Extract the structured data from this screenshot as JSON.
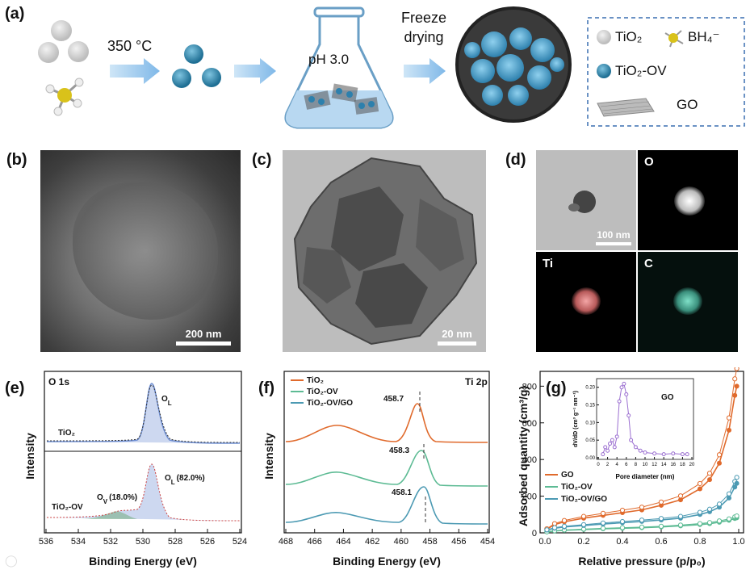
{
  "panels": {
    "a": "(a)",
    "b": "(b)",
    "c": "(c)",
    "d": "(d)",
    "e": "(e)",
    "f": "(f)",
    "g": "(g)"
  },
  "schematic": {
    "step1": "350 °C",
    "step2": "pH 3.0",
    "step3_line1": "Freeze",
    "step3_line2": "drying",
    "legend": {
      "tio2": "TiO₂",
      "bh4": "BH₄⁻",
      "tio2ov": "TiO₂-OV",
      "go": "GO"
    }
  },
  "scale_bars": {
    "b": "200 nm",
    "c": "20 nm",
    "d": "100 nm"
  },
  "mapping": {
    "o": "O",
    "ti": "Ti",
    "c": "C"
  },
  "colors": {
    "tio2": "#e06a2c",
    "tio2ov": "#5dbb94",
    "tio2ovgo": "#4c9ab3",
    "o1s_fill": "#6f8fd3",
    "ov_fill": "#7bb089"
  },
  "xps_o1s": {
    "title": "O 1s",
    "ylabel": "Intensity",
    "xlabel": "Binding Energy (eV)",
    "xticks": [
      "536",
      "534",
      "532",
      "530",
      "528",
      "526",
      "524"
    ],
    "sample_top": "TiO₂",
    "sample_bottom": "TiO₂-OV",
    "peak_top": "O",
    "peak_top_sub": "L",
    "peak_ov": "O",
    "peak_ov_sub": "V",
    "peak_ov_pct": "(18.0%)",
    "peak_ol_bottom": "O",
    "peak_ol_sub": "L",
    "peak_ol_pct": "(82.0%)"
  },
  "xps_ti2p": {
    "title": "Ti 2p",
    "ylabel": "Intensity",
    "xlabel": "Binding Energy (eV)",
    "xticks": [
      "468",
      "466",
      "464",
      "462",
      "460",
      "458",
      "456",
      "454"
    ],
    "legend": [
      "TiO₂",
      "TiO₂-OV",
      "TiO₂-OV/GO"
    ],
    "peak_labels": [
      "458.7",
      "458.3",
      "458.1"
    ]
  },
  "bet": {
    "ylabel": "Adsorbed quantity (cm³/g)",
    "xlabel": "Relative pressure (p/p₀)",
    "xticks": [
      "0.0",
      "0.2",
      "0.4",
      "0.6",
      "0.8",
      "1.0"
    ],
    "yticks": [
      "0",
      "200",
      "400",
      "600",
      "800"
    ],
    "legend": [
      "GO",
      "TiO₂-OV",
      "TiO₂-OV/GO"
    ],
    "inset": {
      "title": "GO",
      "xlabel": "Pore diameter (nm)",
      "ylabel": "dV/dD (cm³ g⁻¹ nm⁻¹)",
      "xticks": [
        "0",
        "2",
        "4",
        "6",
        "8",
        "10",
        "12",
        "14",
        "16",
        "18",
        "20"
      ],
      "yticks": [
        "0.00",
        "0.05",
        "0.10",
        "0.15",
        "0.20"
      ]
    }
  },
  "chart_data": [
    {
      "type": "line",
      "title": "O 1s",
      "xlabel": "Binding Energy (eV)",
      "ylabel": "Intensity",
      "xlim": [
        536,
        524
      ],
      "series": [
        {
          "name": "TiO₂",
          "x": [
            536,
            532,
            531,
            530,
            529.6,
            529.2,
            528.5,
            527,
            524
          ],
          "values": [
            0.05,
            0.06,
            0.1,
            0.5,
            1.0,
            0.75,
            0.25,
            0.06,
            0.05
          ]
        },
        {
          "name": "TiO₂-OV",
          "x": [
            536,
            532,
            531.2,
            530,
            529.6,
            529.2,
            528.5,
            527,
            524
          ],
          "values": [
            0.05,
            0.1,
            0.18,
            0.55,
            1.0,
            0.75,
            0.25,
            0.06,
            0.05
          ]
        }
      ]
    },
    {
      "type": "line",
      "title": "Ti 2p",
      "xlabel": "Binding Energy (eV)",
      "ylabel": "Intensity",
      "xlim": [
        468,
        454
      ],
      "series": [
        {
          "name": "TiO₂",
          "x": [
            468,
            466,
            464.4,
            462,
            459.5,
            458.7,
            458,
            456,
            454
          ],
          "values": [
            0.05,
            0.15,
            0.3,
            0.15,
            0.4,
            1.0,
            0.35,
            0.05,
            0.04
          ]
        },
        {
          "name": "TiO₂-OV",
          "x": [
            468,
            466,
            464.0,
            462,
            459.2,
            458.3,
            457.6,
            456,
            454
          ],
          "values": [
            0.05,
            0.15,
            0.3,
            0.15,
            0.4,
            1.0,
            0.35,
            0.05,
            0.04
          ]
        },
        {
          "name": "TiO₂-OV/GO",
          "x": [
            468,
            466,
            463.9,
            462,
            459,
            458.1,
            457.4,
            456,
            454
          ],
          "values": [
            0.05,
            0.12,
            0.25,
            0.12,
            0.35,
            0.9,
            0.3,
            0.05,
            0.04
          ]
        }
      ]
    },
    {
      "type": "line",
      "xlabel": "Relative pressure (p/p₀)",
      "ylabel": "Adsorbed quantity (cm³/g)",
      "xlim": [
        0,
        1.0
      ],
      "ylim": [
        0,
        850
      ],
      "series": [
        {
          "name": "GO",
          "x": [
            0.01,
            0.05,
            0.1,
            0.2,
            0.3,
            0.4,
            0.5,
            0.6,
            0.7,
            0.8,
            0.85,
            0.9,
            0.95,
            0.98,
            0.99
          ],
          "values": [
            20,
            45,
            60,
            80,
            95,
            110,
            125,
            150,
            180,
            240,
            290,
            380,
            560,
            750,
            800
          ]
        },
        {
          "name": "TiO₂-OV",
          "x": [
            0.01,
            0.05,
            0.1,
            0.2,
            0.3,
            0.4,
            0.5,
            0.6,
            0.7,
            0.8,
            0.85,
            0.9,
            0.95,
            0.98,
            0.99
          ],
          "values": [
            5,
            10,
            14,
            18,
            22,
            25,
            28,
            32,
            38,
            45,
            50,
            58,
            68,
            78,
            82
          ]
        },
        {
          "name": "TiO₂-OV/GO",
          "x": [
            0.01,
            0.05,
            0.1,
            0.2,
            0.3,
            0.4,
            0.5,
            0.6,
            0.7,
            0.8,
            0.85,
            0.9,
            0.95,
            0.98,
            0.99
          ],
          "values": [
            15,
            25,
            32,
            40,
            48,
            55,
            62,
            70,
            80,
            100,
            115,
            140,
            190,
            250,
            270
          ]
        }
      ]
    },
    {
      "type": "line",
      "title": "GO",
      "xlabel": "Pore diameter (nm)",
      "ylabel": "dV/dD (cm³ g⁻¹ nm⁻¹)",
      "xlim": [
        0,
        20
      ],
      "ylim": [
        0,
        0.22
      ],
      "series": [
        {
          "x": [
            1,
            1.5,
            2,
            2.5,
            3,
            3.5,
            4,
            4.5,
            5,
            5.5,
            6,
            6.5,
            7,
            8,
            9,
            10,
            12,
            14,
            16,
            18,
            19
          ],
          "values": [
            0.01,
            0.03,
            0.02,
            0.04,
            0.05,
            0.03,
            0.06,
            0.16,
            0.2,
            0.21,
            0.18,
            0.12,
            0.05,
            0.03,
            0.02,
            0.015,
            0.012,
            0.01,
            0.012,
            0.01,
            0.01
          ]
        }
      ]
    }
  ]
}
